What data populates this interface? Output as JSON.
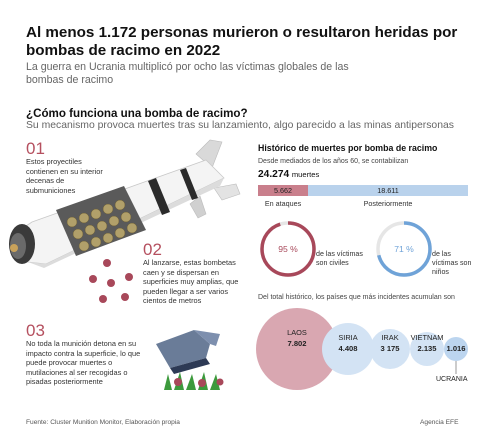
{
  "headline": {
    "title": "Al menos 1.172 personas murieron o resultaron heridas por bombas de racimo en 2022",
    "subtitle": "La guerra en Ucrania multiplicó por ocho las víctimas globales de las bombas de racimo"
  },
  "mechanism": {
    "title": "¿Cómo funciona una bomba de racimo?",
    "subtitle": "Su mecanismo provoca muertes tras su lanzamiento, algo parecido a las minas antipersonas",
    "steps": [
      {
        "number": "01",
        "text": "Estos proyectiles contienen en su interior decenas de submuniciones"
      },
      {
        "number": "02",
        "text": "Al lanzarse, estas bombetas caen y se dispersan en superficies muy amplias, que pueden llegar a ser varios cientos de metros"
      },
      {
        "number": "03",
        "text": "No toda la munición detona en su impacto contra la superficie, lo que puede provocar muertes o mutilaciones al ser recogidas o pisadas posteriormente"
      }
    ]
  },
  "history": {
    "title": "Histórico de muertes por bomba de racimo",
    "since": "Desde mediados de los años 60, se contabilizan",
    "total_value": "24.274",
    "total_unit": "muertes",
    "bar": {
      "attacks_value": "5.662",
      "attacks_label": "En ataques",
      "later_value": "18.611",
      "later_label": "Posteriormente"
    },
    "rings": [
      {
        "value": "95 %",
        "fraction": 0.95,
        "color": "#a8485a",
        "caption": "de las víctimas son civiles"
      },
      {
        "value": "71 %",
        "fraction": 0.71,
        "color": "#6fa3d8",
        "caption": "de las víctimas son niños"
      }
    ]
  },
  "countries": {
    "subtitle": "Del total histórico, los países que más incidentes acumulan son",
    "items": [
      {
        "name": "LAOS",
        "value": "7.802"
      },
      {
        "name": "SIRIA",
        "value": "4.408"
      },
      {
        "name": "IRAK",
        "value": "3 175"
      },
      {
        "name": "VIETNAM",
        "value": "2.135"
      },
      {
        "name": "",
        "value": "1.016"
      }
    ],
    "ukraine_label": "UCRANIA"
  },
  "footer": {
    "source": "Fuente: Cluster Munition Monitor, Elaboración propia",
    "agency": "Agencia EFE"
  },
  "colors": {
    "accent_red": "#a8485a",
    "accent_blue": "#6fa3d8",
    "bar_red": "#c97f8c",
    "bar_blue": "#b9d2ec"
  }
}
